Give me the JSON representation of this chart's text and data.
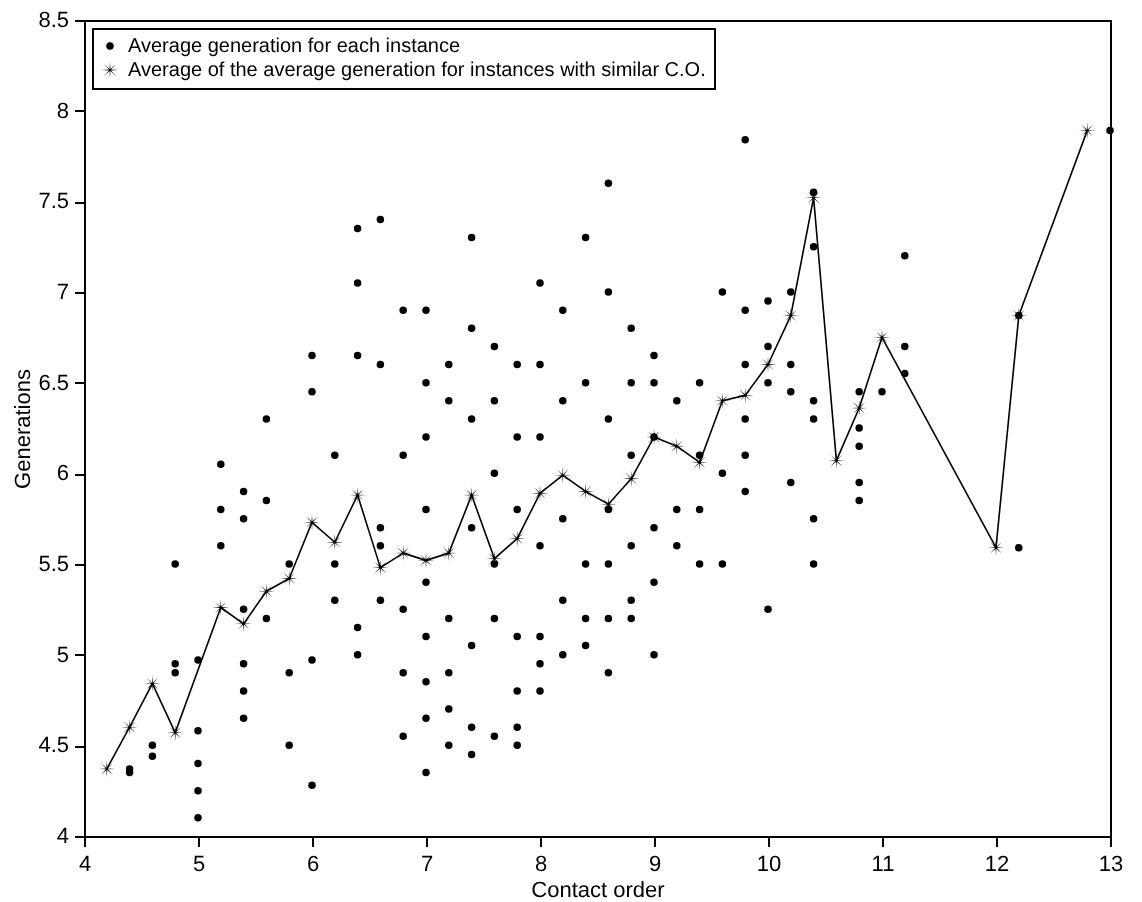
{
  "chart_data": {
    "type": "scatter",
    "xlabel": "Contact order",
    "ylabel": "Generations",
    "xlim": [
      4,
      13
    ],
    "ylim": [
      4,
      8.5
    ],
    "xticks": [
      4,
      5,
      6,
      7,
      8,
      9,
      10,
      11,
      12,
      13
    ],
    "yticks": [
      4,
      4.5,
      5,
      5.5,
      6,
      6.5,
      7,
      7.5,
      8,
      8.5
    ],
    "grid": false,
    "legend": "top left",
    "series": [
      {
        "name": "Average generation for each instance",
        "type": "scatter",
        "marker": "circle",
        "color": "#000000",
        "x": [
          4.4,
          4.4,
          4.6,
          4.6,
          4.8,
          4.8,
          4.8,
          5.0,
          5.0,
          5.0,
          5.0,
          5.0,
          5.2,
          5.2,
          5.2,
          5.4,
          5.4,
          5.4,
          5.4,
          5.4,
          5.4,
          5.6,
          5.6,
          5.6,
          5.8,
          5.8,
          5.8,
          6.0,
          6.0,
          6.0,
          6.0,
          6.2,
          6.2,
          6.2,
          6.4,
          6.4,
          6.4,
          6.4,
          6.4,
          6.6,
          6.6,
          6.6,
          6.6,
          6.6,
          6.8,
          6.8,
          6.8,
          6.8,
          6.8,
          7.0,
          7.0,
          7.0,
          7.0,
          7.0,
          7.0,
          7.0,
          7.0,
          7.0,
          7.2,
          7.2,
          7.2,
          7.2,
          7.2,
          7.2,
          7.4,
          7.4,
          7.4,
          7.4,
          7.4,
          7.4,
          7.4,
          7.6,
          7.6,
          7.6,
          7.6,
          7.6,
          7.6,
          7.8,
          7.8,
          7.8,
          7.8,
          7.8,
          7.8,
          7.8,
          8.0,
          8.0,
          8.0,
          8.0,
          8.0,
          8.0,
          8.0,
          8.2,
          8.2,
          8.2,
          8.2,
          8.2,
          8.4,
          8.4,
          8.4,
          8.4,
          8.4,
          8.6,
          8.6,
          8.6,
          8.6,
          8.6,
          8.6,
          8.6,
          8.8,
          8.8,
          8.8,
          8.8,
          8.8,
          8.8,
          9.0,
          9.0,
          9.0,
          9.0,
          9.0,
          9.0,
          9.2,
          9.2,
          9.2,
          9.4,
          9.4,
          9.4,
          9.4,
          9.6,
          9.6,
          9.6,
          9.8,
          9.8,
          9.8,
          9.8,
          9.8,
          9.8,
          10.0,
          10.0,
          10.0,
          10.0,
          10.2,
          10.2,
          10.2,
          10.2,
          10.4,
          10.4,
          10.4,
          10.4,
          10.4,
          10.4,
          10.8,
          10.8,
          10.8,
          10.8,
          10.8,
          11.0,
          11.2,
          11.2,
          11.2,
          12.2,
          12.2,
          13.0
        ],
        "values": [
          4.37,
          4.35,
          4.5,
          4.44,
          4.9,
          4.95,
          5.5,
          4.4,
          4.25,
          4.1,
          4.97,
          4.58,
          6.05,
          5.8,
          5.6,
          5.9,
          5.75,
          5.25,
          4.95,
          4.8,
          4.65,
          6.3,
          5.85,
          5.2,
          4.5,
          4.9,
          5.5,
          4.28,
          6.65,
          6.45,
          4.97,
          5.3,
          5.5,
          6.1,
          7.35,
          7.05,
          6.65,
          5.0,
          5.15,
          7.4,
          6.6,
          5.6,
          5.7,
          5.3,
          6.9,
          6.1,
          5.25,
          4.9,
          4.55,
          6.9,
          6.5,
          6.2,
          5.8,
          5.4,
          5.1,
          4.85,
          4.65,
          4.35,
          6.6,
          6.4,
          5.2,
          4.9,
          4.7,
          4.5,
          7.3,
          6.8,
          6.3,
          5.7,
          5.05,
          4.6,
          4.45,
          6.7,
          6.4,
          6.0,
          5.5,
          5.2,
          4.55,
          6.6,
          6.2,
          5.8,
          5.1,
          4.8,
          4.6,
          4.5,
          7.05,
          6.6,
          6.2,
          5.6,
          5.1,
          4.95,
          4.8,
          6.9,
          6.4,
          5.75,
          5.3,
          5.0,
          7.3,
          6.5,
          5.5,
          5.2,
          5.05,
          7.6,
          7.0,
          6.3,
          5.8,
          5.5,
          5.2,
          4.9,
          6.8,
          6.5,
          6.1,
          5.6,
          5.3,
          5.2,
          6.65,
          6.5,
          6.2,
          5.7,
          5.4,
          5.0,
          6.4,
          5.8,
          5.6,
          6.5,
          6.1,
          5.8,
          5.5,
          7.0,
          6.0,
          5.5,
          7.84,
          6.9,
          6.6,
          6.3,
          6.1,
          5.9,
          6.95,
          6.7,
          6.5,
          5.25,
          7.0,
          6.6,
          6.45,
          5.95,
          7.55,
          7.25,
          5.75,
          5.5,
          6.4,
          6.3,
          6.45,
          6.25,
          6.15,
          5.95,
          5.85,
          6.45,
          7.2,
          6.7,
          6.55,
          6.87,
          5.59,
          7.89
        ]
      },
      {
        "name": "Average of the average generation for instances with similar C.O.",
        "type": "line",
        "marker": "star",
        "color": "#000000",
        "x": [
          4.2,
          4.4,
          4.6,
          4.8,
          5.2,
          5.4,
          5.6,
          5.8,
          6.0,
          6.2,
          6.4,
          6.6,
          6.8,
          7.0,
          7.2,
          7.4,
          7.6,
          7.8,
          8.0,
          8.2,
          8.4,
          8.6,
          8.8,
          9.0,
          9.2,
          9.4,
          9.6,
          9.8,
          10.0,
          10.2,
          10.4,
          10.6,
          10.8,
          11.0,
          12.0,
          12.2,
          12.8
        ],
        "values": [
          4.37,
          4.6,
          4.84,
          4.57,
          5.26,
          5.17,
          5.35,
          5.42,
          5.73,
          5.62,
          5.88,
          5.48,
          5.56,
          5.52,
          5.56,
          5.88,
          5.53,
          5.64,
          5.89,
          5.99,
          5.9,
          5.83,
          5.97,
          6.2,
          6.15,
          6.06,
          6.4,
          6.43,
          6.6,
          6.87,
          7.52,
          6.07,
          6.36,
          6.75,
          5.59,
          6.87,
          7.89
        ]
      }
    ]
  }
}
